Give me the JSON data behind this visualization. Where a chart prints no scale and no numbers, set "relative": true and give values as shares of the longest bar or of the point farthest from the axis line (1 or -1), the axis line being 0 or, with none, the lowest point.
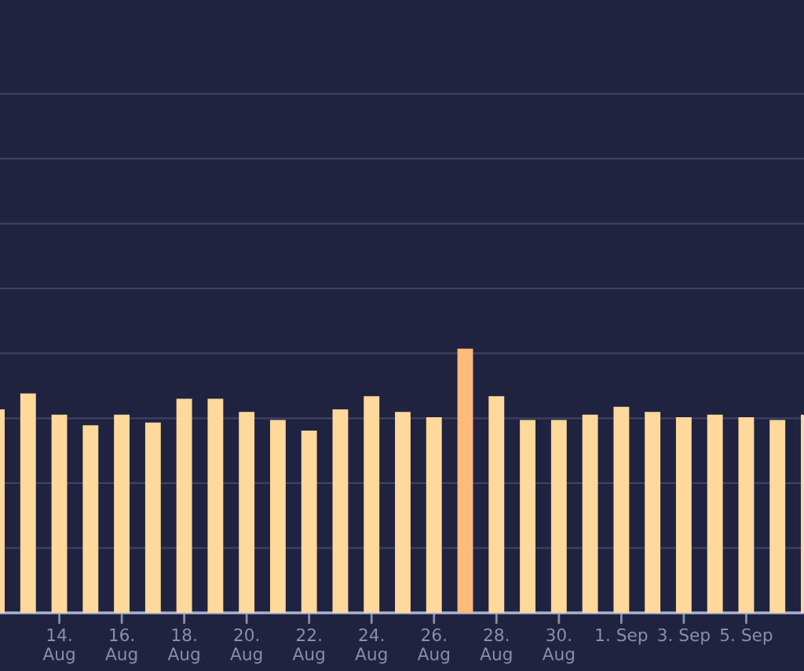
{
  "chart_data": {
    "type": "bar",
    "relative": true,
    "grid": "y",
    "categories": [
      null,
      null,
      "14.\nAug",
      null,
      "16.\nAug",
      null,
      "18.\nAug",
      null,
      "20.\nAug",
      null,
      "22.\nAug",
      null,
      "24.\nAug",
      null,
      "26.\nAug",
      null,
      "28.\nAug",
      null,
      "30.\nAug",
      null,
      "1. Sep",
      null,
      "3. Sep",
      null,
      "5. Sep",
      null,
      null
    ],
    "values": [
      0.77,
      0.83,
      0.75,
      0.71,
      0.75,
      0.72,
      0.81,
      0.81,
      0.76,
      0.73,
      0.69,
      0.77,
      0.82,
      0.76,
      0.74,
      1,
      0.82,
      0.73,
      0.73,
      0.75,
      0.78,
      0.76,
      0.74,
      0.75,
      0.74,
      0.73,
      0.75
    ],
    "colors": [
      "#ffd89b",
      "#ffd89b",
      "#ffd89b",
      "#ffd89b",
      "#ffd89b",
      "#ffd89b",
      "#ffd89b",
      "#ffd89b",
      "#ffd89b",
      "#ffd89b",
      "#ffd89b",
      "#ffd89b",
      "#ffd89b",
      "#ffd89b",
      "#ffd89b",
      "#fdba7a",
      "#ffd89b",
      "#ffd89b",
      "#ffd89b",
      "#ffd89b",
      "#ffd89b",
      "#ffd89b",
      "#ffd89b",
      "#ffd89b",
      "#ffd89b",
      "#ffd89b",
      "#ffd89b"
    ]
  }
}
